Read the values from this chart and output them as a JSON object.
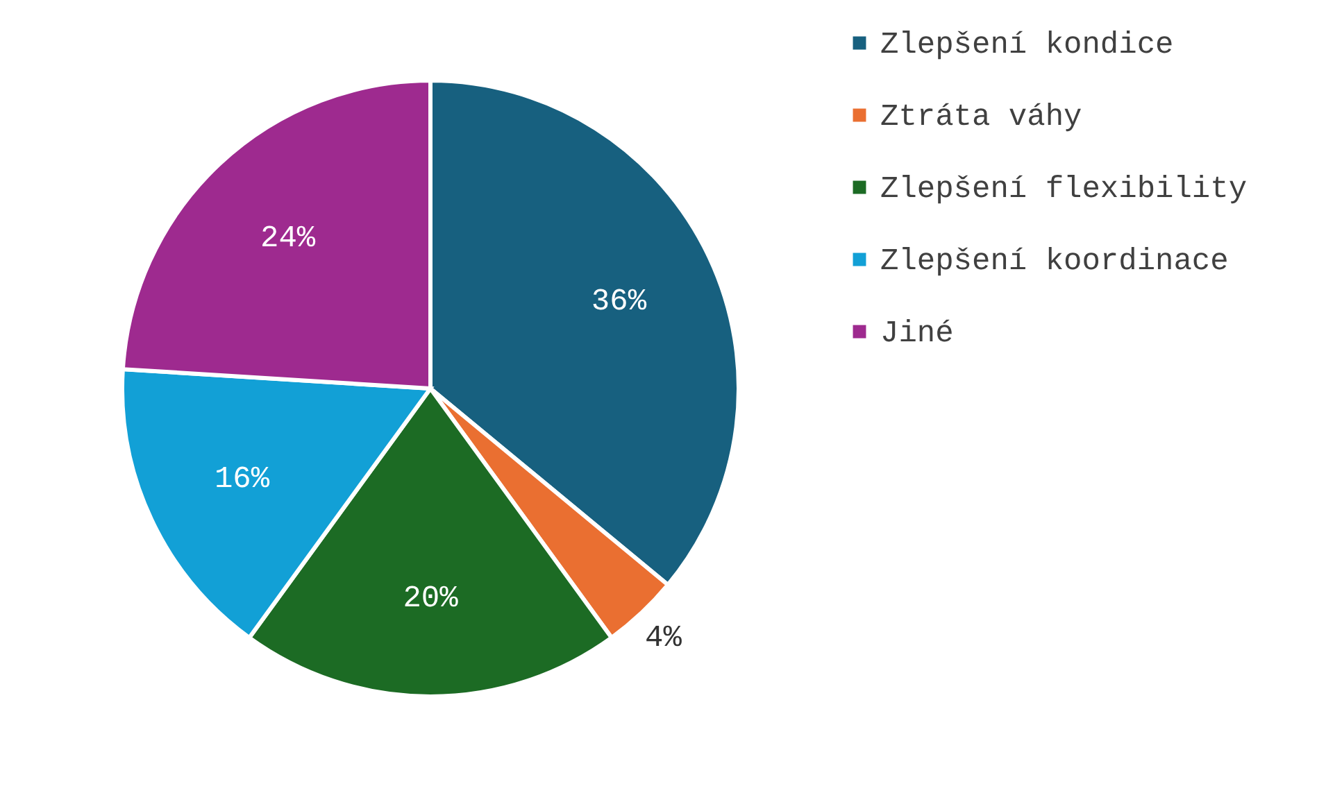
{
  "chart_data": {
    "type": "pie",
    "categories": [
      "Zlepšení kondice",
      "Ztráta váhy",
      "Zlepšení flexibility",
      "Zlepšení koordinace",
      "Jiné"
    ],
    "values": [
      36,
      4,
      20,
      16,
      24
    ],
    "colors": [
      "#17607f",
      "#ea6f31",
      "#1c6b24",
      "#12a0d6",
      "#9e2a8f"
    ],
    "value_labels": [
      "36%",
      "4%",
      "20%",
      "16%",
      "24%"
    ],
    "legend": "right"
  }
}
